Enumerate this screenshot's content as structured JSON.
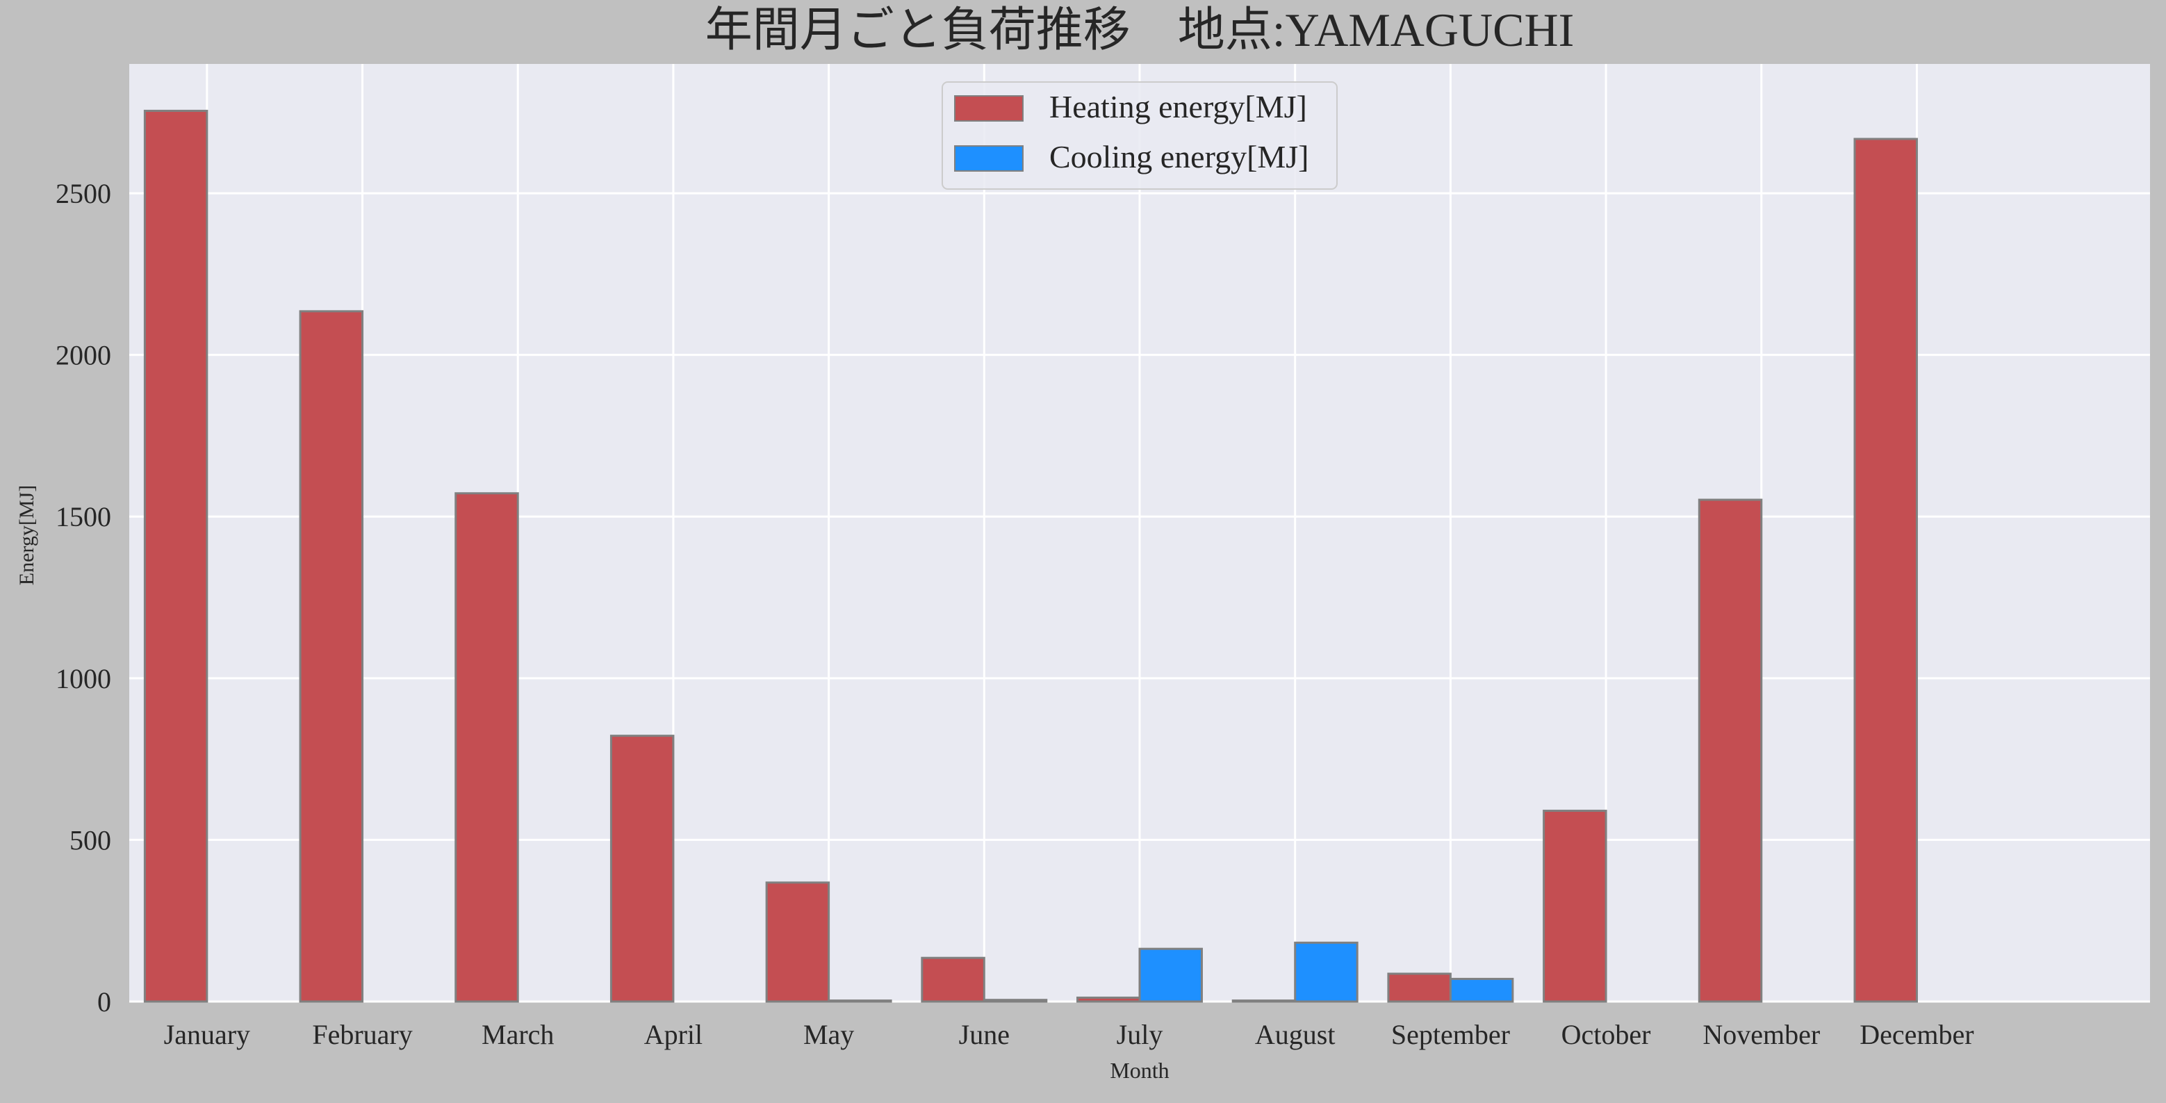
{
  "colors": {
    "page_background": "#c0c0c0",
    "plot_background": "#e9eaf2",
    "grid": "#ffffff",
    "heating": "#c44e52",
    "cooling": "#1e90ff",
    "bar_edge": "#808080",
    "text": "#262626"
  },
  "chart_data": {
    "type": "bar",
    "title": "年間月ごと負荷推移　地点:YAMAGUCHI",
    "xlabel": "Month",
    "ylabel": "Energy[MJ]",
    "categories": [
      "January",
      "February",
      "March",
      "April",
      "May",
      "June",
      "July",
      "August",
      "September",
      "October",
      "November",
      "December"
    ],
    "series": [
      {
        "name": "Heating energy[MJ]",
        "color": "#c44e52",
        "values": [
          2755,
          2135,
          1572,
          822,
          368,
          135,
          12,
          3,
          86,
          590,
          1552,
          2668
        ]
      },
      {
        "name": "Cooling energy[MJ]",
        "color": "#1e90ff",
        "values": [
          0,
          0,
          0,
          0,
          3,
          5,
          163,
          182,
          70,
          0,
          0,
          0
        ]
      }
    ],
    "ylim": [
      0,
      2900
    ],
    "yticks": [
      0,
      500,
      1000,
      1500,
      2000,
      2500
    ],
    "xlim": [
      -0.5,
      12.5
    ],
    "grid": true,
    "legend_position": "top-center"
  }
}
